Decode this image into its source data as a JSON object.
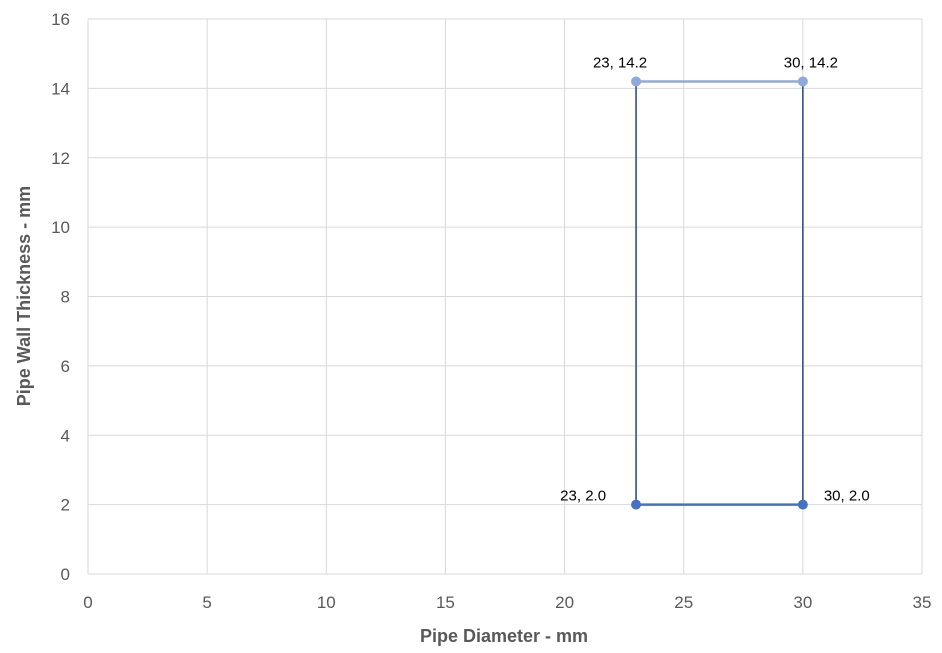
{
  "chart_data": {
    "type": "scatter",
    "title": "",
    "xlabel": "Pipe Diameter - mm",
    "ylabel": "Pipe Wall Thickness - mm",
    "xlim": [
      0,
      35
    ],
    "ylim": [
      0,
      16
    ],
    "xticks": [
      0,
      5,
      10,
      15,
      20,
      25,
      30,
      35
    ],
    "yticks": [
      0,
      2,
      4,
      6,
      8,
      10,
      12,
      14,
      16
    ],
    "grid": true,
    "legend": "none",
    "series": [
      {
        "color": "#8eaadb",
        "points": [
          {
            "x": 23,
            "y": 14.2,
            "label": "23, 14.2"
          },
          {
            "x": 30,
            "y": 14.2,
            "label": "30, 14.2"
          }
        ]
      },
      {
        "color": "#4472c4",
        "points": [
          {
            "x": 23,
            "y": 2.0,
            "label": "23, 2.0"
          },
          {
            "x": 30,
            "y": 2.0,
            "label": "30, 2.0"
          }
        ]
      },
      {
        "color": "#2f4f8f",
        "points": [
          {
            "x": 23,
            "y": 2.0
          },
          {
            "x": 23,
            "y": 14.2
          }
        ]
      },
      {
        "color": "#2f4f8f",
        "points": [
          {
            "x": 30,
            "y": 2.0
          },
          {
            "x": 30,
            "y": 14.2
          }
        ]
      }
    ],
    "colors": {
      "grid": "#d9d9d9",
      "axis_text": "#595959"
    }
  }
}
